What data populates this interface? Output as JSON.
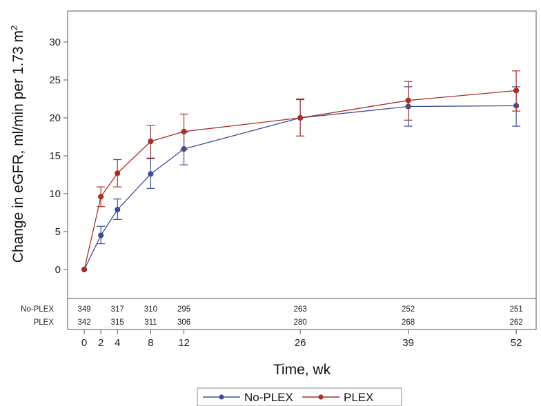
{
  "chart_data": {
    "type": "line",
    "xlabel": "Time, wk",
    "ylabel": "Change in eGFR, ml/min per 1.73 m",
    "ylabel_superscript": "2",
    "x": [
      0,
      2,
      4,
      8,
      12,
      26,
      39,
      52
    ],
    "x_tick_labels": [
      "0",
      "2",
      "4",
      "8",
      "12",
      "26",
      "39",
      "52"
    ],
    "ylim": [
      -3,
      34
    ],
    "y_ticks": [
      0,
      5,
      10,
      15,
      20,
      25,
      30
    ],
    "y_tick_labels": [
      "0",
      "5",
      "10",
      "15",
      "20",
      "25",
      "30"
    ],
    "grid": false,
    "legend_position": "bottom",
    "series": [
      {
        "name": "No-PLEX",
        "color": "#3c4d96",
        "values": [
          0,
          4.5,
          7.9,
          12.6,
          15.9,
          20.0,
          21.5,
          21.6
        ],
        "ci_low": [
          0,
          3.4,
          6.6,
          10.7,
          13.8,
          17.6,
          18.9,
          18.9
        ],
        "ci_high": [
          0,
          5.7,
          9.3,
          14.6,
          18.1,
          22.4,
          24.1,
          24.1
        ],
        "at_risk": [
          "349",
          "317",
          "310",
          "295",
          "263",
          "252",
          "251"
        ]
      },
      {
        "name": "PLEX",
        "color": "#a5302b",
        "values": [
          0,
          9.6,
          12.7,
          16.9,
          18.2,
          20.0,
          22.3,
          23.6
        ],
        "ci_low": [
          0,
          8.3,
          10.9,
          14.7,
          15.8,
          17.6,
          19.7,
          20.9
        ],
        "ci_high": [
          0,
          10.9,
          14.5,
          19.0,
          20.5,
          22.5,
          24.8,
          26.2
        ],
        "at_risk": [
          "342",
          "315",
          "311",
          "306",
          "280",
          "268",
          "262"
        ]
      }
    ],
    "at_risk_x": [
      0,
      4,
      8,
      12,
      26,
      39,
      52
    ]
  }
}
